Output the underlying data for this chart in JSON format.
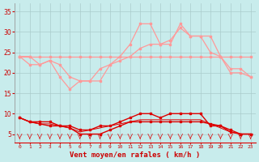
{
  "x": [
    0,
    1,
    2,
    3,
    4,
    5,
    6,
    7,
    8,
    9,
    10,
    11,
    12,
    13,
    14,
    15,
    16,
    17,
    18,
    19,
    20,
    21,
    22,
    23
  ],
  "upper_flat": [
    24,
    24,
    24,
    24,
    24,
    24,
    24,
    24,
    24,
    24,
    24,
    24,
    24,
    24,
    24,
    24,
    24,
    24,
    24,
    24,
    24,
    24,
    24,
    24
  ],
  "upper_gust": [
    24,
    24,
    22,
    23,
    22,
    19,
    18,
    18,
    18,
    22,
    24,
    27,
    32,
    32,
    27,
    27,
    32,
    29,
    29,
    29,
    24,
    21,
    21,
    19
  ],
  "upper_avg": [
    24,
    22,
    22,
    23,
    19,
    16,
    18,
    18,
    21,
    22,
    23,
    24,
    26,
    27,
    27,
    28,
    31,
    29,
    29,
    25,
    24,
    20,
    20,
    19
  ],
  "lower_dark1": [
    9,
    8,
    8,
    8,
    7,
    7,
    6,
    6,
    7,
    7,
    8,
    9,
    10,
    10,
    9,
    10,
    10,
    10,
    10,
    7,
    7,
    6,
    5,
    5
  ],
  "lower_dark2": [
    9,
    8,
    7.5,
    7,
    7,
    6.5,
    5,
    5,
    5,
    6,
    7,
    8,
    8,
    8,
    8,
    8,
    8,
    8,
    8,
    7.5,
    7,
    5.5,
    5,
    5
  ],
  "lower_flat": [
    9,
    8,
    7.5,
    7.5,
    7,
    6.5,
    5.5,
    6,
    6.5,
    7,
    7.5,
    8,
    8.5,
    8.5,
    8.5,
    8.5,
    8.5,
    8.5,
    8.5,
    7.5,
    6.5,
    5.5,
    5,
    5
  ],
  "arrow_angles": [
    225,
    210,
    180,
    180,
    180,
    180,
    210,
    180,
    180,
    180,
    180,
    180,
    195,
    180,
    180,
    180,
    180,
    195,
    180,
    195,
    225,
    180,
    180,
    180
  ],
  "bg_color": "#c8ecec",
  "grid_color": "#aacccc",
  "light_red": "#ff9999",
  "dark_red": "#dd0000",
  "xlabel": "Vent moyen/en rafales ( km/h )",
  "xlabel_color": "#cc0000",
  "tick_color": "#cc0000",
  "ylim": [
    3,
    37
  ],
  "yticks": [
    5,
    10,
    15,
    20,
    25,
    30,
    35
  ],
  "xlim": [
    -0.5,
    23.5
  ]
}
